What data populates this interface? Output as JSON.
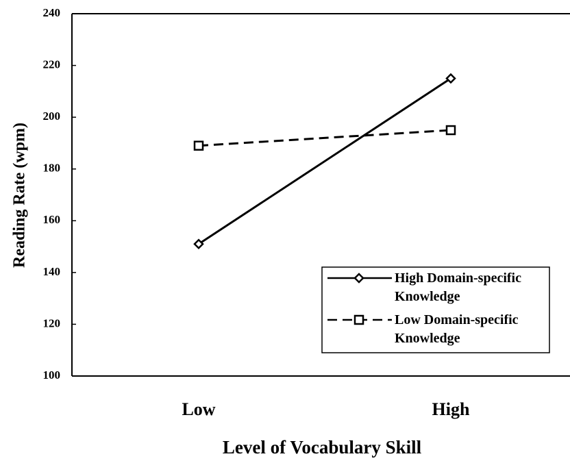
{
  "chart_data": {
    "type": "line",
    "categories": [
      "Low",
      "High"
    ],
    "x_label": "Level of Vocabulary Skill",
    "y_label": "Reading Rate (wpm)",
    "ylim": [
      100,
      240
    ],
    "yticks": [
      100,
      120,
      140,
      160,
      180,
      200,
      220,
      240
    ],
    "grid": false,
    "legend": "lower right",
    "series": [
      {
        "name": "High Domain-specific Knowledge",
        "color": "#000000",
        "line_style": "solid",
        "marker": "diamond",
        "values": [
          151,
          215
        ]
      },
      {
        "name": "Low Domain-specific Knowledge",
        "color": "#000000",
        "line_style": "dashed",
        "marker": "square",
        "values": [
          189,
          195
        ]
      }
    ]
  }
}
